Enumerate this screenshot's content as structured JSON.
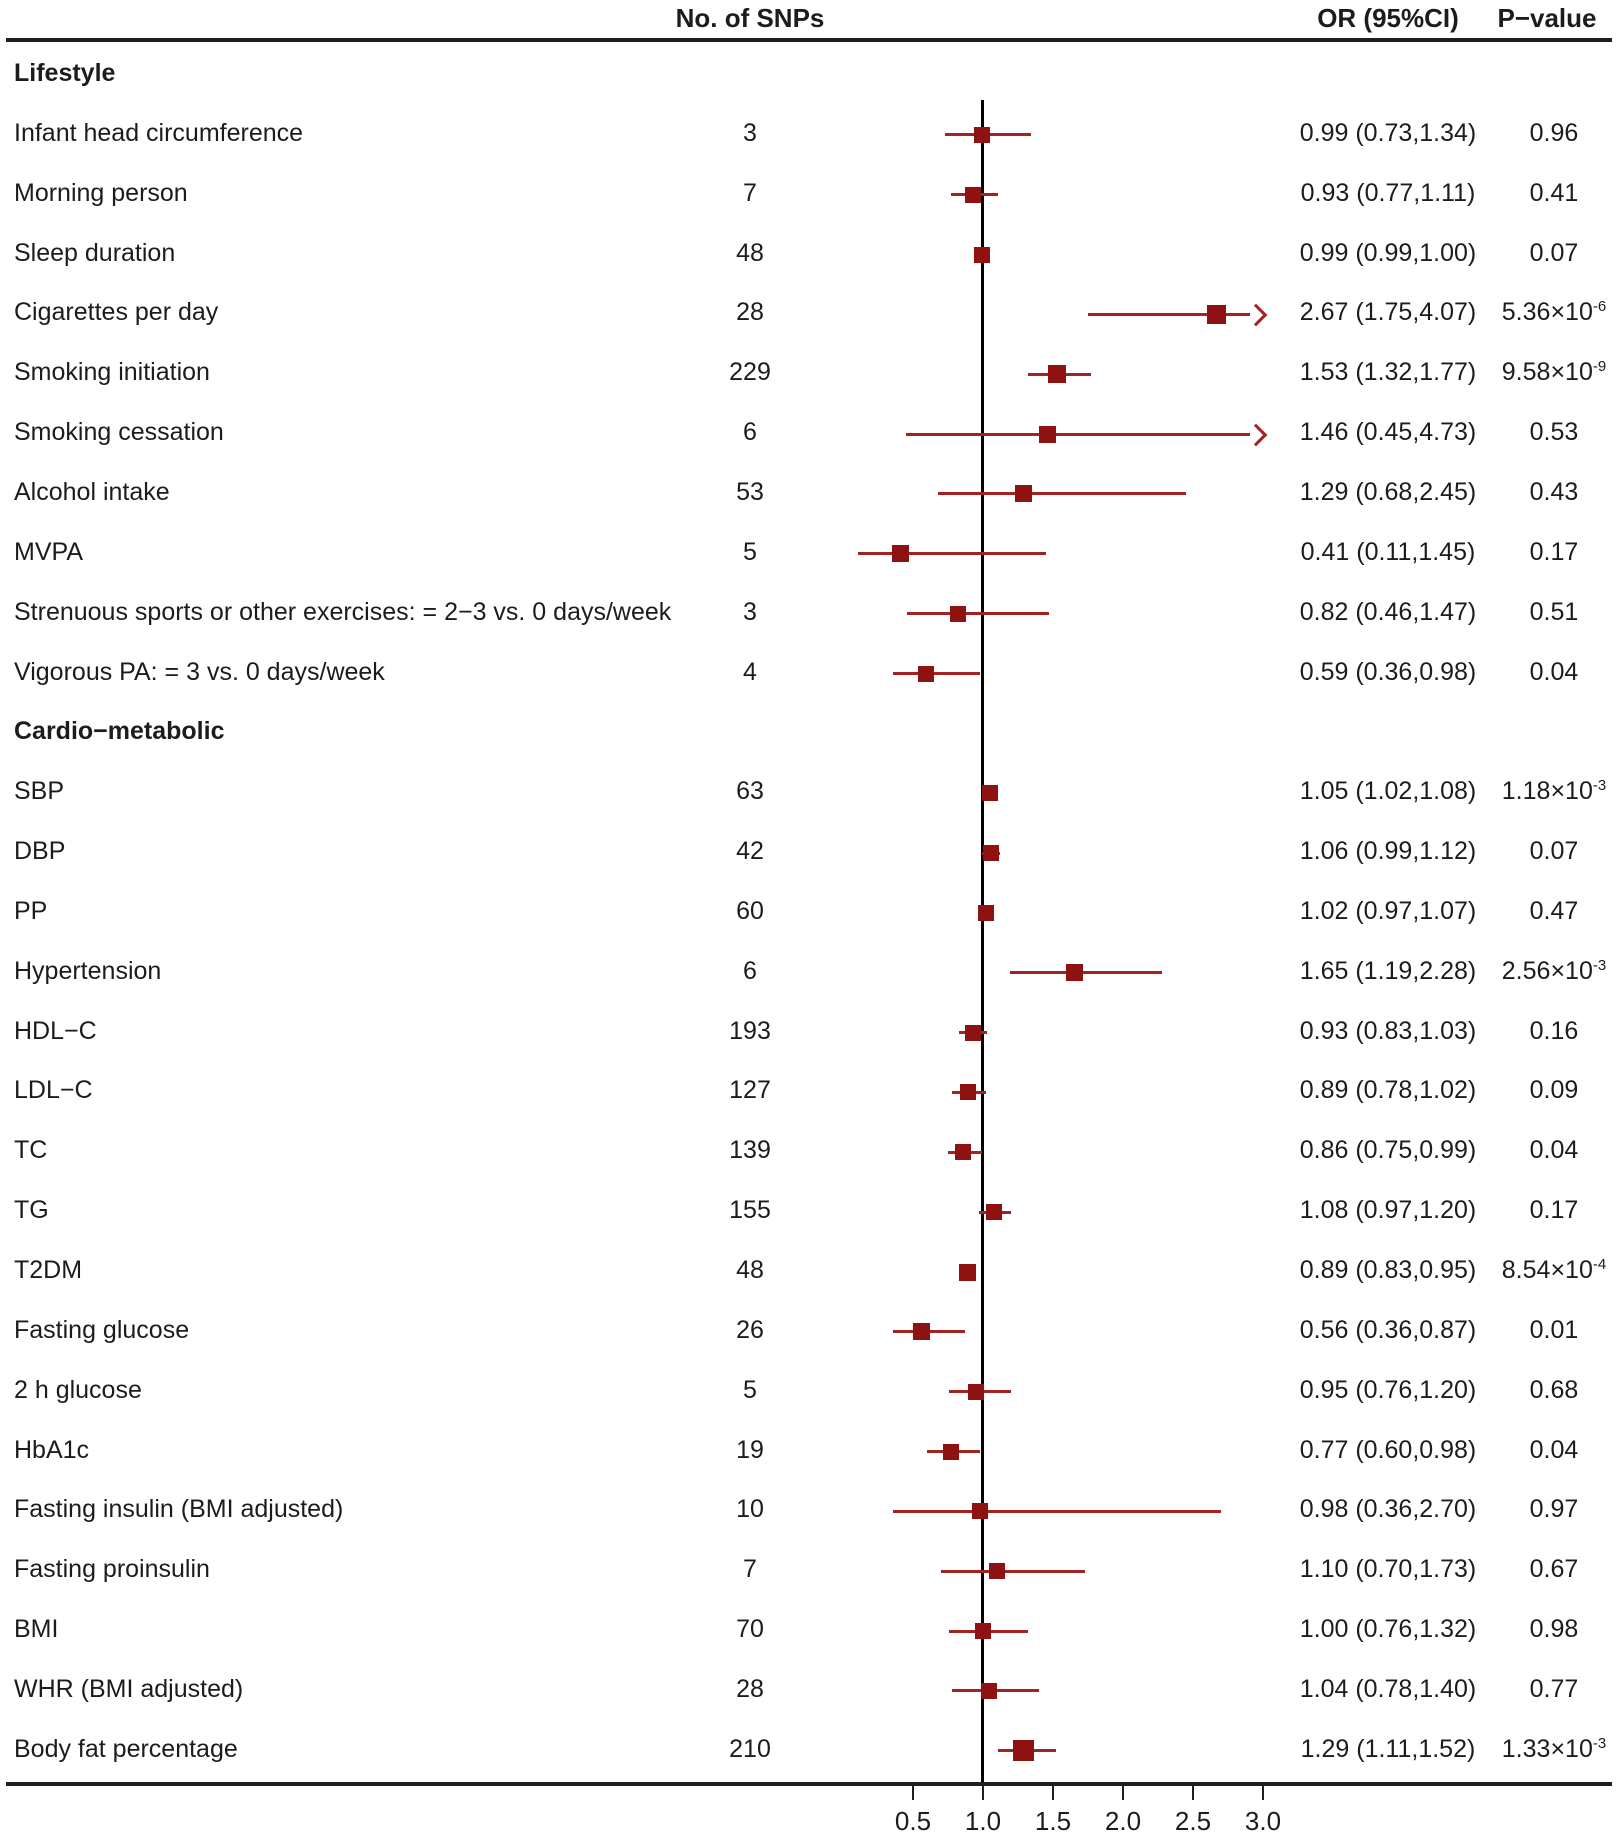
{
  "header": {
    "snp_col": "No. of SNPs",
    "or_col": "OR (95%CI)",
    "p_col": "P−value"
  },
  "colors": {
    "marker": "#8e1212",
    "ci_line": "#a32222",
    "axis": "#1f1f1f",
    "text": "#1c1c1c"
  },
  "chart_data": {
    "type": "forest",
    "or_axis": {
      "ticks": [
        {
          "value": 0.5,
          "label": "0.5"
        },
        {
          "value": 1.0,
          "label": "1.0"
        },
        {
          "value": 1.5,
          "label": "1.5"
        },
        {
          "value": 2.0,
          "label": "2.0"
        },
        {
          "value": 2.5,
          "label": "2.5"
        },
        {
          "value": 3.0,
          "label": "3.0"
        }
      ],
      "reference_value": 1.0,
      "clip_max": 3.02,
      "scale": "linear"
    },
    "sections": [
      {
        "label": "Lifestyle",
        "rows": [
          {
            "label": "Infant head circumference",
            "snps": "3",
            "or": 0.99,
            "lo": 0.73,
            "hi": 1.34,
            "or_text": "0.99 (0.73,1.34)",
            "p": "0.96",
            "p_sup": "",
            "arrow": false,
            "ms": 16
          },
          {
            "label": "Morning person",
            "snps": "7",
            "or": 0.93,
            "lo": 0.77,
            "hi": 1.11,
            "or_text": "0.93 (0.77,1.11)",
            "p": "0.41",
            "p_sup": "",
            "arrow": false,
            "ms": 16
          },
          {
            "label": "Sleep duration",
            "snps": "48",
            "or": 0.99,
            "lo": 0.99,
            "hi": 1.0,
            "or_text": "0.99 (0.99,1.00)",
            "p": "0.07",
            "p_sup": "",
            "arrow": false,
            "ms": 16
          },
          {
            "label": "Cigarettes per day",
            "snps": "28",
            "or": 2.67,
            "lo": 1.75,
            "hi": 4.07,
            "or_text": "2.67 (1.75,4.07)",
            "p": "5.36×10",
            "p_sup": "-6",
            "arrow": true,
            "ms": 19
          },
          {
            "label": "Smoking initiation",
            "snps": "229",
            "or": 1.53,
            "lo": 1.32,
            "hi": 1.77,
            "or_text": "1.53 (1.32,1.77)",
            "p": "9.58×10",
            "p_sup": "-9",
            "arrow": false,
            "ms": 18
          },
          {
            "label": "Smoking cessation",
            "snps": "6",
            "or": 1.46,
            "lo": 0.45,
            "hi": 4.73,
            "or_text": "1.46 (0.45,4.73)",
            "p": "0.53",
            "p_sup": "",
            "arrow": true,
            "ms": 17
          },
          {
            "label": "Alcohol intake",
            "snps": "53",
            "or": 1.29,
            "lo": 0.68,
            "hi": 2.45,
            "or_text": "1.29 (0.68,2.45)",
            "p": "0.43",
            "p_sup": "",
            "arrow": false,
            "ms": 17
          },
          {
            "label": "MVPA",
            "snps": "5",
            "or": 0.41,
            "lo": 0.11,
            "hi": 1.45,
            "or_text": "0.41 (0.11,1.45)",
            "p": "0.17",
            "p_sup": "",
            "arrow": false,
            "ms": 17
          },
          {
            "label": "Strenuous sports or other exercises: = 2−3 vs. 0 days/week",
            "snps": "3",
            "or": 0.82,
            "lo": 0.46,
            "hi": 1.47,
            "or_text": "0.82 (0.46,1.47)",
            "p": "0.51",
            "p_sup": "",
            "arrow": false,
            "ms": 16
          },
          {
            "label": "Vigorous PA: = 3 vs. 0 days/week",
            "snps": "4",
            "or": 0.59,
            "lo": 0.36,
            "hi": 0.98,
            "or_text": "0.59 (0.36,0.98)",
            "p": "0.04",
            "p_sup": "",
            "arrow": false,
            "ms": 16
          }
        ]
      },
      {
        "label": "Cardio−metabolic",
        "rows": [
          {
            "label": "SBP",
            "snps": "63",
            "or": 1.05,
            "lo": 1.02,
            "hi": 1.08,
            "or_text": "1.05 (1.02,1.08)",
            "p": "1.18×10",
            "p_sup": "-3",
            "arrow": false,
            "ms": 16
          },
          {
            "label": "DBP",
            "snps": "42",
            "or": 1.06,
            "lo": 0.99,
            "hi": 1.12,
            "or_text": "1.06 (0.99,1.12)",
            "p": "0.07",
            "p_sup": "",
            "arrow": false,
            "ms": 16
          },
          {
            "label": "PP",
            "snps": "60",
            "or": 1.02,
            "lo": 0.97,
            "hi": 1.07,
            "or_text": "1.02 (0.97,1.07)",
            "p": "0.47",
            "p_sup": "",
            "arrow": false,
            "ms": 16
          },
          {
            "label": "Hypertension",
            "snps": "6",
            "or": 1.65,
            "lo": 1.19,
            "hi": 2.28,
            "or_text": "1.65 (1.19,2.28)",
            "p": "2.56×10",
            "p_sup": "-3",
            "arrow": false,
            "ms": 17
          },
          {
            "label": "HDL−C",
            "snps": "193",
            "or": 0.93,
            "lo": 0.83,
            "hi": 1.03,
            "or_text": "0.93 (0.83,1.03)",
            "p": "0.16",
            "p_sup": "",
            "arrow": false,
            "ms": 16
          },
          {
            "label": "LDL−C",
            "snps": "127",
            "or": 0.89,
            "lo": 0.78,
            "hi": 1.02,
            "or_text": "0.89 (0.78,1.02)",
            "p": "0.09",
            "p_sup": "",
            "arrow": false,
            "ms": 16
          },
          {
            "label": "TC",
            "snps": "139",
            "or": 0.86,
            "lo": 0.75,
            "hi": 0.99,
            "or_text": "0.86 (0.75,0.99)",
            "p": "0.04",
            "p_sup": "",
            "arrow": false,
            "ms": 16
          },
          {
            "label": "TG",
            "snps": "155",
            "or": 1.08,
            "lo": 0.97,
            "hi": 1.2,
            "or_text": "1.08 (0.97,1.20)",
            "p": "0.17",
            "p_sup": "",
            "arrow": false,
            "ms": 16
          },
          {
            "label": "T2DM",
            "snps": "48",
            "or": 0.89,
            "lo": 0.83,
            "hi": 0.95,
            "or_text": "0.89 (0.83,0.95)",
            "p": "8.54×10",
            "p_sup": "-4",
            "arrow": false,
            "ms": 17
          },
          {
            "label": "Fasting glucose",
            "snps": "26",
            "or": 0.56,
            "lo": 0.36,
            "hi": 0.87,
            "or_text": "0.56 (0.36,0.87)",
            "p": "0.01",
            "p_sup": "",
            "arrow": false,
            "ms": 17
          },
          {
            "label": "2 h glucose",
            "snps": "5",
            "or": 0.95,
            "lo": 0.76,
            "hi": 1.2,
            "or_text": "0.95 (0.76,1.20)",
            "p": "0.68",
            "p_sup": "",
            "arrow": false,
            "ms": 16
          },
          {
            "label": "HbA1c",
            "snps": "19",
            "or": 0.77,
            "lo": 0.6,
            "hi": 0.98,
            "or_text": "0.77 (0.60,0.98)",
            "p": "0.04",
            "p_sup": "",
            "arrow": false,
            "ms": 16
          },
          {
            "label": "Fasting insulin (BMI adjusted)",
            "snps": "10",
            "or": 0.98,
            "lo": 0.36,
            "hi": 2.7,
            "or_text": "0.98 (0.36,2.70)",
            "p": "0.97",
            "p_sup": "",
            "arrow": false,
            "ms": 16
          },
          {
            "label": "Fasting proinsulin",
            "snps": "7",
            "or": 1.1,
            "lo": 0.7,
            "hi": 1.73,
            "or_text": "1.10 (0.70,1.73)",
            "p": "0.67",
            "p_sup": "",
            "arrow": false,
            "ms": 16
          },
          {
            "label": "BMI",
            "snps": "70",
            "or": 1.0,
            "lo": 0.76,
            "hi": 1.32,
            "or_text": "1.00 (0.76,1.32)",
            "p": "0.98",
            "p_sup": "",
            "arrow": false,
            "ms": 16
          },
          {
            "label": "WHR (BMI adjusted)",
            "snps": "28",
            "or": 1.04,
            "lo": 0.78,
            "hi": 1.4,
            "or_text": "1.04 (0.78,1.40)",
            "p": "0.77",
            "p_sup": "",
            "arrow": false,
            "ms": 16
          },
          {
            "label": "Body fat percentage",
            "snps": "210",
            "or": 1.29,
            "lo": 1.11,
            "hi": 1.52,
            "or_text": "1.29 (1.11,1.52)",
            "p": "1.33×10",
            "p_sup": "-3",
            "arrow": false,
            "ms": 21
          }
        ]
      }
    ]
  }
}
